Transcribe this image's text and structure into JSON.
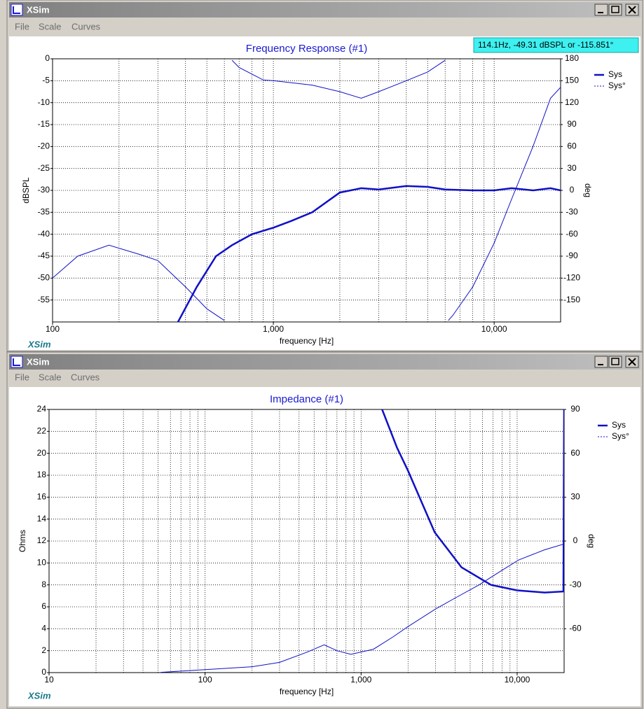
{
  "windows": [
    {
      "title": "XSim",
      "menu": [
        "File",
        "Scale",
        "Curves"
      ],
      "brand": "XSim"
    },
    {
      "title": "XSim",
      "menu": [
        "File",
        "Scale",
        "Curves"
      ],
      "brand": "XSim"
    }
  ],
  "tooltip": "114.1Hz, -49.31 dBSPL or -115.851°",
  "chart_data": [
    {
      "type": "line",
      "title": "Frequency Response (#1)",
      "xlabel": "frequency [Hz]",
      "ylabel": "dBSPL",
      "y2label": "deg",
      "log_x": true,
      "grid": true,
      "xlim": [
        100,
        20000
      ],
      "xticks": [
        100,
        {
          "value": 1000,
          "label": "1,000"
        },
        {
          "value": 10000,
          "label": "10,000"
        }
      ],
      "xgrid": [
        200,
        300,
        400,
        500,
        600,
        700,
        800,
        900,
        2000,
        3000,
        4000,
        5000,
        6000,
        7000,
        8000,
        9000
      ],
      "ylim": [
        -60,
        0
      ],
      "yticks": [
        0,
        -5,
        -10,
        -15,
        -20,
        -25,
        -30,
        -35,
        -40,
        -45,
        -50,
        -55
      ],
      "y2lim": [
        -180,
        180
      ],
      "y2ticks": [
        180,
        150,
        120,
        90,
        60,
        30,
        0,
        -30,
        -60,
        -90,
        -120,
        -150
      ],
      "series": [
        {
          "name": "Sys",
          "color": "#1010c8",
          "width": 2.5,
          "x": [
            370,
            450,
            550,
            650,
            800,
            1000,
            1200,
            1500,
            2000,
            2500,
            3000,
            4000,
            5000,
            6000,
            8000,
            10000,
            12000,
            15000,
            18000,
            20000
          ],
          "values": [
            -60,
            -52,
            -45,
            -42.5,
            -40,
            -38.5,
            -37,
            -35,
            -30.5,
            -29.5,
            -29.8,
            -29,
            -29.2,
            -29.8,
            -30,
            -30,
            -29.5,
            -30,
            -29.5,
            -30
          ]
        },
        {
          "name": "Sys°",
          "color": "#1010c8",
          "width": 1,
          "axis": "y2",
          "x": [
            100,
            130,
            180,
            250,
            300,
            400,
            500,
            600,
            630,
            650,
            700,
            900,
            1000,
            1500,
            2000,
            2500,
            3000,
            4000,
            5000,
            6000,
            6100,
            6200,
            6500,
            8000,
            10000,
            12000,
            15000,
            18000,
            20000
          ],
          "values": [
            -120,
            -90,
            -75,
            -88,
            -96,
            -132,
            -162,
            -178,
            null,
            178,
            168,
            151,
            150,
            144,
            135,
            126,
            135,
            150,
            162,
            178,
            null,
            -178,
            -171,
            -132,
            -72,
            -12,
            60,
            126,
            141
          ]
        }
      ]
    },
    {
      "type": "line",
      "title": "Impedance (#1)",
      "xlabel": "frequency [Hz]",
      "ylabel": "Ohms",
      "y2label": "deg",
      "log_x": true,
      "grid": true,
      "xlim": [
        10,
        20000
      ],
      "xticks": [
        10,
        100,
        {
          "value": 1000,
          "label": "1,000"
        },
        {
          "value": 10000,
          "label": "10,000"
        }
      ],
      "xgrid": [
        20,
        30,
        40,
        50,
        60,
        70,
        80,
        90,
        200,
        300,
        400,
        500,
        600,
        700,
        800,
        900,
        2000,
        3000,
        4000,
        5000,
        6000,
        7000,
        8000,
        9000
      ],
      "ylim": [
        0,
        24
      ],
      "yticks": [
        0,
        2,
        4,
        6,
        8,
        10,
        12,
        14,
        16,
        18,
        20,
        22,
        24
      ],
      "y2lim": [
        -90,
        90
      ],
      "y2ticks": [
        90,
        60,
        30,
        0,
        -30,
        -60
      ],
      "series": [
        {
          "name": "Sys",
          "color": "#1010c8",
          "width": 2.5,
          "x": [
            1363,
            1700,
            2000,
            2960,
            4400,
            6800,
            10000,
            15000,
            19800,
            20000
          ],
          "values": [
            24,
            20.5,
            18.4,
            12.8,
            9.6,
            8.0,
            7.5,
            7.3,
            7.4,
            24
          ]
        },
        {
          "name": "Sys°",
          "color": "#1010c8",
          "width": 1,
          "axis": "y2",
          "x": [
            52,
            100,
            200,
            300,
            450,
            580,
            700,
            860,
            1200,
            1600,
            2000,
            3000,
            4000,
            5700,
            8000,
            10200,
            15000,
            20000
          ],
          "values": [
            -89.8,
            -88,
            -86,
            -83,
            -76,
            -71,
            -75,
            -77.5,
            -74,
            -65.6,
            -58.5,
            -46.5,
            -39,
            -30,
            -20,
            -13,
            -6,
            -2
          ]
        }
      ]
    }
  ]
}
